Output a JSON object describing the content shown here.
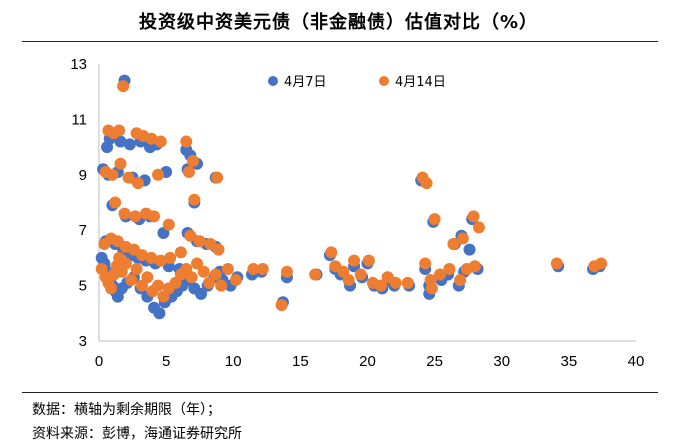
{
  "title": "投资级中资美元债（非金融债）估值对比（%）",
  "notes": {
    "line1": "数据：横轴为剩余期限（年）；",
    "line2": "资料来源：彭博，海通证券研究所"
  },
  "colors": {
    "apr7": "#4472C4",
    "apr14": "#ED7D31",
    "axis": "#BFBFBF"
  },
  "chart_data": {
    "type": "scatter",
    "title": "投资级中资美元债（非金融债）估值对比（%）",
    "xlabel": "横轴为剩余期限（年）",
    "ylabel": "%",
    "xlim": [
      0,
      40
    ],
    "ylim": [
      3,
      13
    ],
    "x_ticks": [
      0,
      5,
      10,
      15,
      20,
      25,
      30,
      35,
      40
    ],
    "y_ticks": [
      3,
      5,
      7,
      9,
      11,
      13
    ],
    "grid": false,
    "legend_position": "top-center",
    "series": [
      {
        "name": "4月7日",
        "color": "#4472C4",
        "points": [
          [
            1.9,
            12.4
          ],
          [
            0.6,
            10.0
          ],
          [
            0.8,
            10.3
          ],
          [
            1.6,
            10.2
          ],
          [
            2.3,
            10.1
          ],
          [
            3.1,
            10.2
          ],
          [
            3.8,
            10.0
          ],
          [
            4.3,
            10.1
          ],
          [
            6.5,
            9.9
          ],
          [
            6.8,
            9.7
          ],
          [
            0.3,
            9.2
          ],
          [
            0.7,
            9.0
          ],
          [
            1.4,
            9.1
          ],
          [
            2.5,
            8.9
          ],
          [
            3.4,
            8.8
          ],
          [
            5.0,
            9.1
          ],
          [
            6.6,
            9.2
          ],
          [
            7.3,
            9.4
          ],
          [
            8.7,
            8.9
          ],
          [
            1.0,
            7.9
          ],
          [
            2.0,
            7.5
          ],
          [
            3.0,
            7.4
          ],
          [
            3.8,
            7.5
          ],
          [
            4.8,
            6.9
          ],
          [
            7.1,
            8.0
          ],
          [
            0.5,
            6.6
          ],
          [
            1.2,
            6.5
          ],
          [
            1.8,
            6.3
          ],
          [
            2.4,
            6.1
          ],
          [
            2.9,
            6.0
          ],
          [
            3.5,
            5.9
          ],
          [
            4.2,
            5.8
          ],
          [
            5.2,
            5.7
          ],
          [
            6.0,
            5.6
          ],
          [
            6.6,
            6.9
          ],
          [
            7.3,
            6.6
          ],
          [
            8.0,
            6.5
          ],
          [
            8.7,
            6.4
          ],
          [
            9.0,
            5.5
          ],
          [
            0.2,
            6.0
          ],
          [
            0.4,
            5.8
          ],
          [
            0.6,
            5.5
          ],
          [
            0.8,
            5.2
          ],
          [
            1.0,
            5.0
          ],
          [
            1.2,
            4.8
          ],
          [
            1.4,
            4.6
          ],
          [
            1.7,
            4.9
          ],
          [
            2.1,
            5.1
          ],
          [
            2.6,
            5.3
          ],
          [
            3.1,
            4.9
          ],
          [
            3.6,
            4.6
          ],
          [
            4.1,
            4.2
          ],
          [
            4.5,
            4.0
          ],
          [
            4.9,
            4.4
          ],
          [
            5.4,
            4.6
          ],
          [
            5.8,
            4.8
          ],
          [
            6.2,
            5.0
          ],
          [
            6.7,
            5.2
          ],
          [
            7.1,
            4.9
          ],
          [
            7.6,
            4.7
          ],
          [
            8.1,
            5.0
          ],
          [
            8.6,
            5.3
          ],
          [
            9.2,
            5.2
          ],
          [
            9.8,
            5.0
          ],
          [
            10.3,
            5.3
          ],
          [
            11.4,
            5.4
          ],
          [
            12.1,
            5.5
          ],
          [
            13.7,
            4.4
          ],
          [
            14.0,
            5.3
          ],
          [
            16.2,
            5.4
          ],
          [
            17.2,
            6.1
          ],
          [
            17.6,
            5.6
          ],
          [
            18.0,
            5.4
          ],
          [
            18.7,
            5.0
          ],
          [
            19.0,
            5.7
          ],
          [
            19.6,
            5.3
          ],
          [
            20.0,
            5.8
          ],
          [
            20.5,
            5.0
          ],
          [
            21.1,
            4.9
          ],
          [
            21.6,
            5.2
          ],
          [
            22.0,
            5.0
          ],
          [
            23.1,
            5.0
          ],
          [
            24.0,
            8.8
          ],
          [
            24.3,
            5.6
          ],
          [
            24.6,
            5.0
          ],
          [
            24.6,
            4.7
          ],
          [
            24.9,
            7.3
          ],
          [
            25.5,
            5.2
          ],
          [
            26.0,
            5.4
          ],
          [
            26.5,
            6.5
          ],
          [
            26.8,
            5.0
          ],
          [
            27.0,
            6.8
          ],
          [
            27.2,
            5.5
          ],
          [
            27.6,
            6.3
          ],
          [
            27.8,
            7.4
          ],
          [
            28.2,
            5.6
          ],
          [
            34.2,
            5.7
          ],
          [
            36.8,
            5.6
          ],
          [
            37.3,
            5.7
          ]
        ]
      },
      {
        "name": "4月14日",
        "color": "#ED7D31",
        "points": [
          [
            1.8,
            12.2
          ],
          [
            0.7,
            10.6
          ],
          [
            1.1,
            10.5
          ],
          [
            1.5,
            10.6
          ],
          [
            2.8,
            10.5
          ],
          [
            3.3,
            10.4
          ],
          [
            3.9,
            10.3
          ],
          [
            4.6,
            10.2
          ],
          [
            6.5,
            10.2
          ],
          [
            7.0,
            9.5
          ],
          [
            0.5,
            9.1
          ],
          [
            1.0,
            9.0
          ],
          [
            1.6,
            9.4
          ],
          [
            2.2,
            8.9
          ],
          [
            2.9,
            8.7
          ],
          [
            4.4,
            9.0
          ],
          [
            6.7,
            9.1
          ],
          [
            8.8,
            8.9
          ],
          [
            1.2,
            8.0
          ],
          [
            1.9,
            7.6
          ],
          [
            2.7,
            7.5
          ],
          [
            3.5,
            7.6
          ],
          [
            4.1,
            7.5
          ],
          [
            5.2,
            7.2
          ],
          [
            7.1,
            8.1
          ],
          [
            0.4,
            6.5
          ],
          [
            0.9,
            6.7
          ],
          [
            1.4,
            6.6
          ],
          [
            2.0,
            6.4
          ],
          [
            2.6,
            6.3
          ],
          [
            3.2,
            6.1
          ],
          [
            3.9,
            6.0
          ],
          [
            4.6,
            5.9
          ],
          [
            5.3,
            6.0
          ],
          [
            6.1,
            6.2
          ],
          [
            6.8,
            6.8
          ],
          [
            7.5,
            6.6
          ],
          [
            8.3,
            6.5
          ],
          [
            8.9,
            6.3
          ],
          [
            0.2,
            5.6
          ],
          [
            0.5,
            5.3
          ],
          [
            0.7,
            5.1
          ],
          [
            0.9,
            4.9
          ],
          [
            1.1,
            5.4
          ],
          [
            1.3,
            5.7
          ],
          [
            1.5,
            6.0
          ],
          [
            1.7,
            5.5
          ],
          [
            2.0,
            5.8
          ],
          [
            2.4,
            5.2
          ],
          [
            2.8,
            5.6
          ],
          [
            3.2,
            5.0
          ],
          [
            3.6,
            5.3
          ],
          [
            4.0,
            4.8
          ],
          [
            4.4,
            5.0
          ],
          [
            4.8,
            4.6
          ],
          [
            5.2,
            4.9
          ],
          [
            5.7,
            5.1
          ],
          [
            6.1,
            5.4
          ],
          [
            6.5,
            5.6
          ],
          [
            6.9,
            5.3
          ],
          [
            7.3,
            5.8
          ],
          [
            7.8,
            5.5
          ],
          [
            8.2,
            5.1
          ],
          [
            8.7,
            5.4
          ],
          [
            9.1,
            5.0
          ],
          [
            9.6,
            5.6
          ],
          [
            10.2,
            5.2
          ],
          [
            11.5,
            5.6
          ],
          [
            12.2,
            5.6
          ],
          [
            13.6,
            4.3
          ],
          [
            14.0,
            5.5
          ],
          [
            16.1,
            5.4
          ],
          [
            17.3,
            6.2
          ],
          [
            17.6,
            5.7
          ],
          [
            18.2,
            5.5
          ],
          [
            18.6,
            5.2
          ],
          [
            19.0,
            5.9
          ],
          [
            19.5,
            5.4
          ],
          [
            20.1,
            5.9
          ],
          [
            20.4,
            5.1
          ],
          [
            21.0,
            5.0
          ],
          [
            21.5,
            5.3
          ],
          [
            22.1,
            5.1
          ],
          [
            23.0,
            5.1
          ],
          [
            24.1,
            8.9
          ],
          [
            24.4,
            8.7
          ],
          [
            24.3,
            5.8
          ],
          [
            24.7,
            5.2
          ],
          [
            24.8,
            4.9
          ],
          [
            25.0,
            7.4
          ],
          [
            25.4,
            5.4
          ],
          [
            26.1,
            5.6
          ],
          [
            26.4,
            6.5
          ],
          [
            26.9,
            5.2
          ],
          [
            27.1,
            6.7
          ],
          [
            27.4,
            5.6
          ],
          [
            27.9,
            7.5
          ],
          [
            28.0,
            5.7
          ],
          [
            28.3,
            7.1
          ],
          [
            34.1,
            5.8
          ],
          [
            36.9,
            5.7
          ],
          [
            37.4,
            5.8
          ]
        ]
      }
    ]
  }
}
